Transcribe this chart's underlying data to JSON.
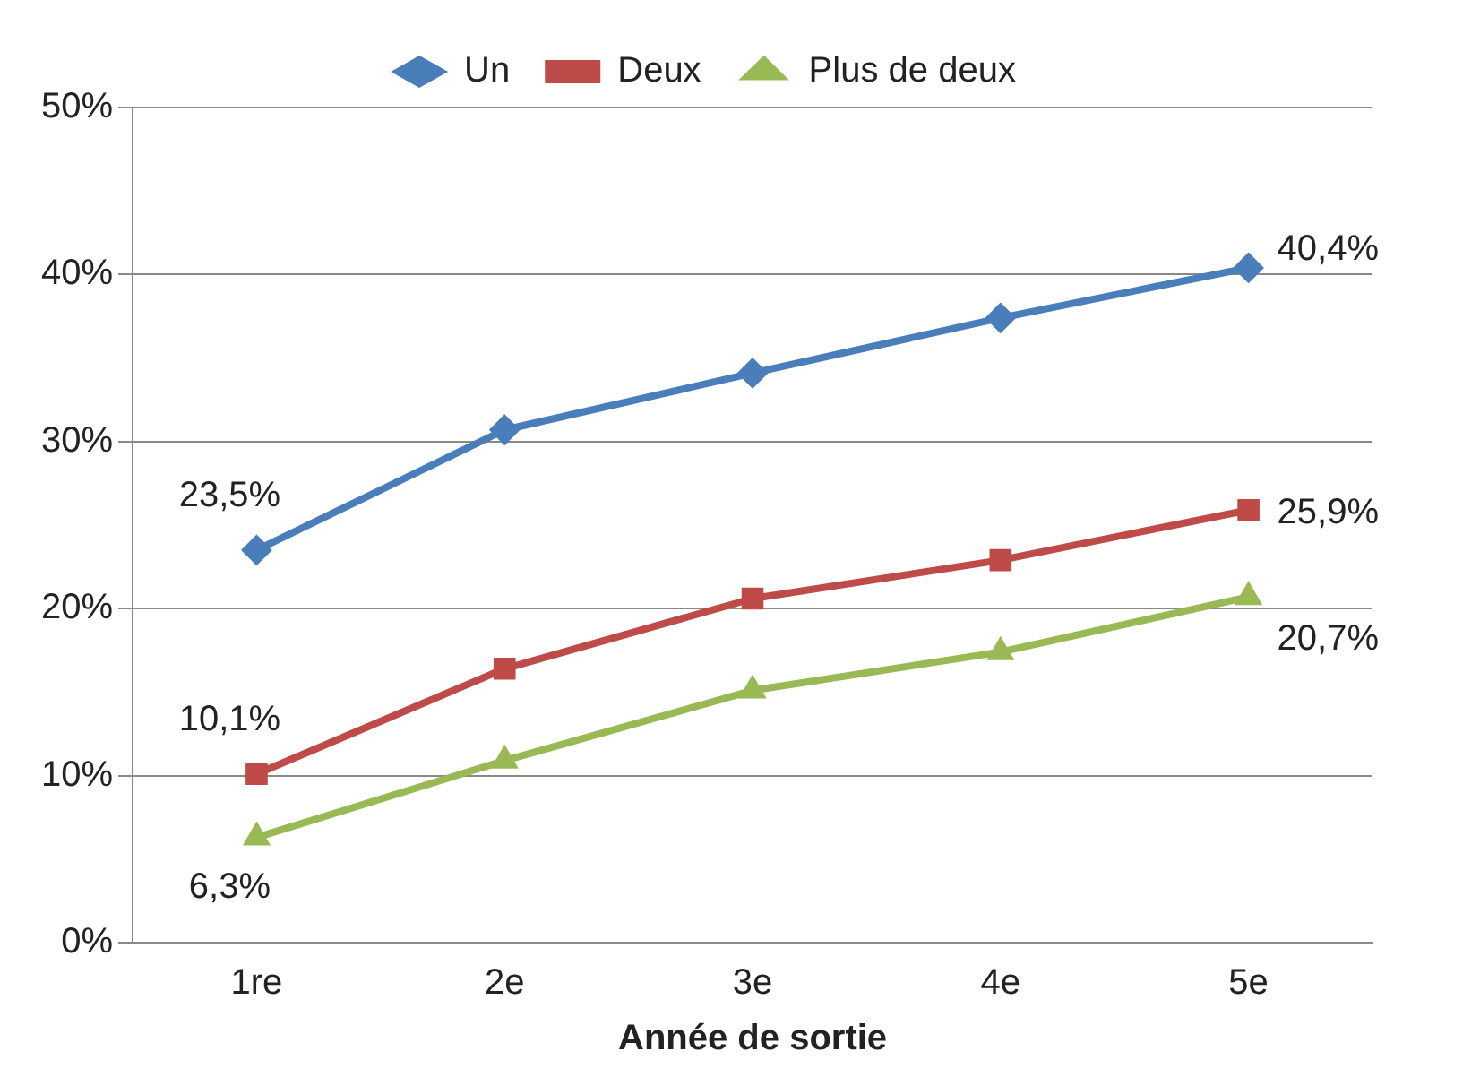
{
  "chart_data": {
    "type": "line",
    "xlabel": "Année de sortie",
    "categories": [
      "1re",
      "2e",
      "3e",
      "4e",
      "5e"
    ],
    "series": [
      {
        "name": "Un",
        "color": "#4a7ebb",
        "marker": "diamond",
        "values": [
          23.5,
          30.7,
          34.1,
          37.4,
          40.4
        ],
        "value_labels": [
          "23,5%",
          null,
          null,
          null,
          "40,4%"
        ]
      },
      {
        "name": "Deux",
        "color": "#be4b48",
        "marker": "square",
        "values": [
          10.1,
          16.4,
          20.6,
          22.9,
          25.9
        ],
        "value_labels": [
          "10,1%",
          null,
          null,
          null,
          "25,9%"
        ]
      },
      {
        "name": "Plus de deux",
        "color": "#98b954",
        "marker": "triangle",
        "values": [
          6.3,
          10.9,
          15.1,
          17.4,
          20.7
        ],
        "value_labels": [
          "6,3%",
          null,
          null,
          null,
          "20,7%"
        ]
      }
    ],
    "ylim": [
      0,
      50
    ],
    "yticks": [
      {
        "value": 0,
        "label": "0%"
      },
      {
        "value": 10,
        "label": "10%"
      },
      {
        "value": 20,
        "label": "20%"
      },
      {
        "value": 30,
        "label": "30%"
      },
      {
        "value": 40,
        "label": "40%"
      },
      {
        "value": 50,
        "label": "50%"
      }
    ],
    "grid": "y",
    "legend": "top",
    "line_style": "solid"
  }
}
